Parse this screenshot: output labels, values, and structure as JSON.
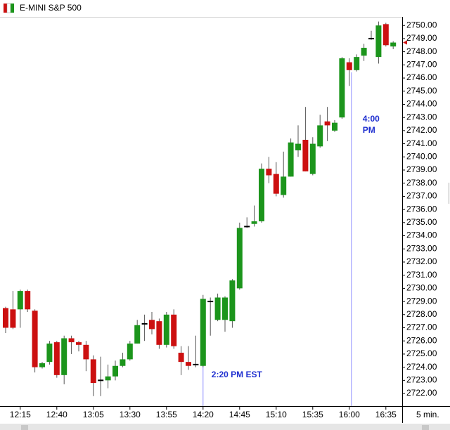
{
  "chart_data": {
    "type": "candlestick",
    "title": "E-MINI S&P 500",
    "interval_label": "5 min.",
    "up_color": "#1c951c",
    "down_color": "#cc1010",
    "flat_color": "#000000",
    "annotation_color": "#1f2fd0",
    "categories": [
      null,
      null,
      "12:15",
      null,
      null,
      null,
      null,
      "12:40",
      null,
      null,
      null,
      null,
      "13:05",
      null,
      null,
      null,
      null,
      "13:30",
      null,
      null,
      null,
      null,
      "13:55",
      null,
      null,
      null,
      null,
      "14:20",
      null,
      null,
      null,
      null,
      "14:45",
      null,
      null,
      null,
      null,
      "15:10",
      null,
      null,
      null,
      null,
      "15:35",
      null,
      null,
      null,
      null,
      "16:00",
      null,
      null,
      null,
      null,
      "16:35",
      null
    ],
    "open": [
      2728.5,
      2728.4,
      2728.4,
      2729.8,
      2728.3,
      2724.0,
      2724.4,
      2725.9,
      2723.4,
      2726.2,
      2725.9,
      2725.7,
      2724.6,
      2723.0,
      2723.0,
      2723.3,
      2724.1,
      2724.6,
      2725.8,
      2727.3,
      2727.6,
      2727.5,
      2725.7,
      2728.0,
      2725.1,
      2724.4,
      2724.2,
      2724.1,
      2729.0,
      2727.6,
      2727.6,
      2727.5,
      2730.0,
      2734.7,
      2734.9,
      2735.1,
      2739.1,
      2738.7,
      2737.1,
      2738.5,
      2740.5,
      2741.3,
      2738.7,
      2740.8,
      2742.7,
      2742.0,
      2743.0,
      2747.2,
      2746.6,
      2747.7,
      2749.0,
      2747.6,
      2750.1,
      2748.4
    ],
    "high": [
      2728.6,
      2729.8,
      2729.9,
      2729.9,
      2728.4,
      2724.4,
      2726.0,
      2726.0,
      2726.4,
      2726.4,
      2726.0,
      2726.0,
      2724.9,
      2724.8,
      2724.2,
      2724.5,
      2725.1,
      2726.0,
      2727.6,
      2728.0,
      2728.2,
      2727.7,
      2728.2,
      2728.4,
      2725.6,
      2725.6,
      2726.4,
      2729.5,
      2729.3,
      2729.6,
      2729.4,
      2730.7,
      2735.0,
      2735.4,
      2736.3,
      2739.5,
      2740.0,
      2739.6,
      2740.4,
      2741.4,
      2742.4,
      2743.8,
      2741.5,
      2743.2,
      2743.8,
      2742.8,
      2747.6,
      2747.5,
      2747.8,
      2748.6,
      2749.6,
      2750.3,
      2750.2,
      2748.8
    ],
    "low": [
      2726.6,
      2726.9,
      2727.0,
      2728.2,
      2723.6,
      2723.9,
      2724.2,
      2723.2,
      2722.7,
      2725.0,
      2725.2,
      2723.7,
      2721.8,
      2721.8,
      2722.4,
      2723.0,
      2724.0,
      2724.5,
      2725.8,
      2726.0,
      2726.5,
      2725.4,
      2725.5,
      2725.4,
      2723.4,
      2723.8,
      2724.0,
      2724.0,
      2726.4,
      2727.5,
      2726.7,
      2727.0,
      2729.9,
      2734.6,
      2734.7,
      2735.0,
      2738.0,
      2737.0,
      2736.9,
      2738.5,
      2740.0,
      2738.9,
      2738.6,
      2740.7,
      2741.2,
      2741.9,
      2742.9,
      2745.4,
      2746.5,
      2747.3,
      2748.9,
      2747.1,
      2748.4,
      2748.2
    ],
    "close": [
      2727.0,
      2727.0,
      2729.8,
      2728.4,
      2724.0,
      2724.3,
      2725.8,
      2723.4,
      2726.2,
      2725.9,
      2725.7,
      2724.6,
      2722.8,
      2723.0,
      2723.3,
      2724.1,
      2724.6,
      2725.8,
      2727.2,
      2727.3,
      2726.9,
      2725.7,
      2728.0,
      2725.6,
      2724.4,
      2724.1,
      2724.2,
      2729.2,
      2729.0,
      2729.3,
      2729.3,
      2730.6,
      2734.6,
      2734.7,
      2735.1,
      2739.1,
      2738.6,
      2737.2,
      2738.5,
      2741.1,
      2741.0,
      2738.9,
      2741.0,
      2742.4,
      2742.4,
      2742.6,
      2747.5,
      2746.6,
      2747.6,
      2748.3,
      2749.0,
      2750.0,
      2748.5,
      2748.7
    ],
    "ylim": [
      2721.2,
      2750.6
    ],
    "yticks": [
      {
        "value": 2722,
        "label": "2722.00"
      },
      {
        "value": 2723,
        "label": "2723.00"
      },
      {
        "value": 2724,
        "label": "2724.00"
      },
      {
        "value": 2725,
        "label": "2725.00"
      },
      {
        "value": 2726,
        "label": "2726.00"
      },
      {
        "value": 2727,
        "label": "2727.00"
      },
      {
        "value": 2728,
        "label": "2728.00"
      },
      {
        "value": 2729,
        "label": "2729.00"
      },
      {
        "value": 2730,
        "label": "2730.00"
      },
      {
        "value": 2731,
        "label": "2731.00"
      },
      {
        "value": 2732,
        "label": "2732.00"
      },
      {
        "value": 2733,
        "label": "2733.00"
      },
      {
        "value": 2734,
        "label": "2734.00"
      },
      {
        "value": 2735,
        "label": "2735.00"
      },
      {
        "value": 2736,
        "label": "2736.00"
      },
      {
        "value": 2737,
        "label": "2737.00"
      },
      {
        "value": 2738,
        "label": "2738.00"
      },
      {
        "value": 2739,
        "label": "2739.00"
      },
      {
        "value": 2740,
        "label": "2740.00"
      },
      {
        "value": 2741,
        "label": "2741.00"
      },
      {
        "value": 2742,
        "label": "2742.00"
      },
      {
        "value": 2743,
        "label": "2743.00"
      },
      {
        "value": 2744,
        "label": "2744.00"
      },
      {
        "value": 2745,
        "label": "2745.00"
      },
      {
        "value": 2746,
        "label": "2746.00"
      },
      {
        "value": 2747,
        "label": "2747.00"
      },
      {
        "value": 2748,
        "label": "2748.00"
      },
      {
        "value": 2749,
        "label": "2749.00"
      },
      {
        "value": 2750,
        "label": "2750.00"
      }
    ],
    "annotations": [
      {
        "x": "14:20",
        "text": "2:20 PM EST"
      },
      {
        "x": "16:00",
        "lines": [
          "4:00",
          "PM"
        ]
      }
    ]
  }
}
